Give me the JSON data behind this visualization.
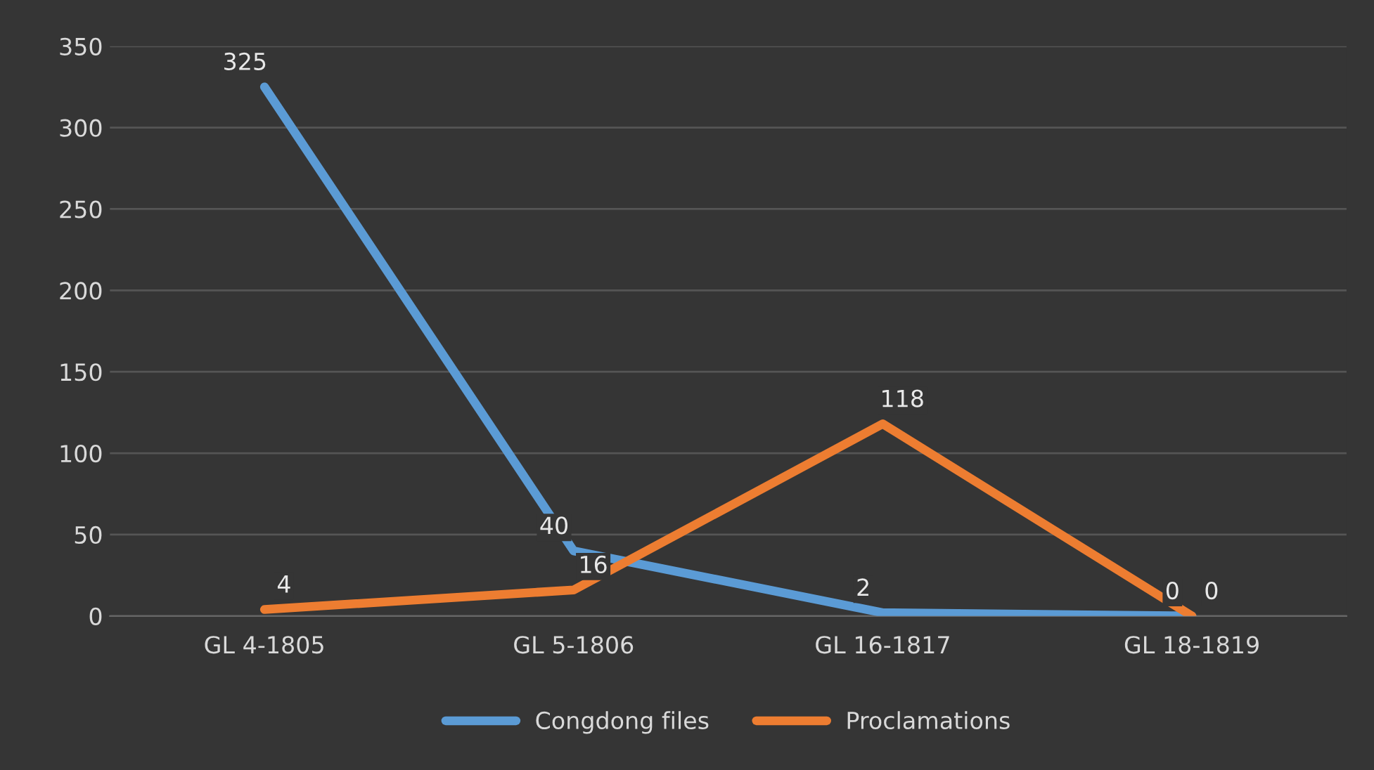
{
  "chart_data": {
    "type": "line",
    "categories": [
      "GL 4-1805",
      "GL 5-1806",
      "GL 16-1817",
      "GL 18-1819"
    ],
    "series": [
      {
        "name": "Congdong files",
        "color": "#5b9bd5",
        "values": [
          325,
          40,
          2,
          0
        ]
      },
      {
        "name": "Proclamations",
        "color": "#ed7d31",
        "values": [
          4,
          16,
          118,
          0
        ]
      }
    ],
    "ylim": [
      0,
      350
    ],
    "yticks": [
      0,
      50,
      100,
      150,
      200,
      250,
      300,
      350
    ],
    "grid": "y",
    "legend": "bottom",
    "data_labels": true,
    "marker": "none",
    "line_style": "solid"
  }
}
